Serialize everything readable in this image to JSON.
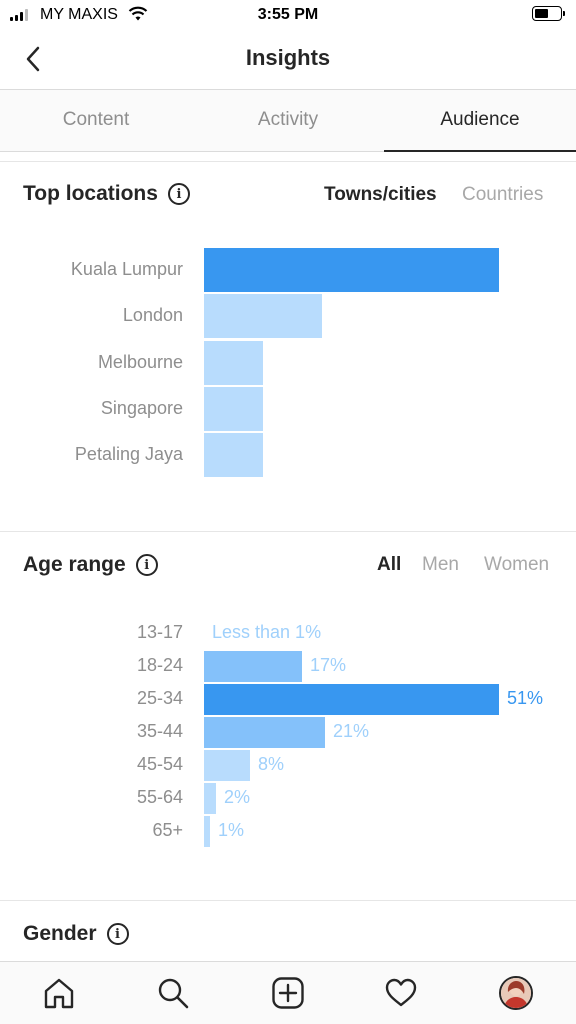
{
  "status_bar": {
    "carrier": "MY MAXIS",
    "time": "3:55 PM"
  },
  "header": {
    "title": "Insights"
  },
  "tabs": [
    {
      "label": "Content",
      "active": false
    },
    {
      "label": "Activity",
      "active": false
    },
    {
      "label": "Audience",
      "active": true
    }
  ],
  "top_locations": {
    "title": "Top locations",
    "filters": [
      {
        "label": "Towns/cities",
        "active": true
      },
      {
        "label": "Countries",
        "active": false
      }
    ]
  },
  "age_range": {
    "title": "Age range",
    "filters": [
      {
        "label": "All",
        "active": true
      },
      {
        "label": "Men",
        "active": false
      },
      {
        "label": "Women",
        "active": false
      }
    ]
  },
  "gender": {
    "title": "Gender"
  },
  "colors": {
    "bar_primary": "#3897f0",
    "bar_secondary": "#84c1fa",
    "bar_light": "#b8dcfd",
    "text_muted": "#8e8e8e"
  },
  "chart_data": [
    {
      "type": "bar",
      "orientation": "horizontal",
      "categories": [
        "Kuala Lumpur",
        "London",
        "Melbourne",
        "Singapore",
        "Petaling Jaya"
      ],
      "values": [
        100,
        40,
        20,
        20,
        20
      ]
    },
    {
      "type": "bar",
      "orientation": "horizontal",
      "categories": [
        "13-17",
        "18-24",
        "25-34",
        "35-44",
        "45-54",
        "55-64",
        "65+"
      ],
      "values": [
        0.5,
        17,
        51,
        21,
        8,
        2,
        1
      ],
      "labels": [
        "Less than 1%",
        "17%",
        "51%",
        "21%",
        "8%",
        "2%",
        "1%"
      ]
    }
  ],
  "bottom_nav": [
    {
      "icon": "home-icon"
    },
    {
      "icon": "search-icon"
    },
    {
      "icon": "new-post-icon"
    },
    {
      "icon": "heart-icon"
    },
    {
      "icon": "profile-avatar"
    }
  ]
}
